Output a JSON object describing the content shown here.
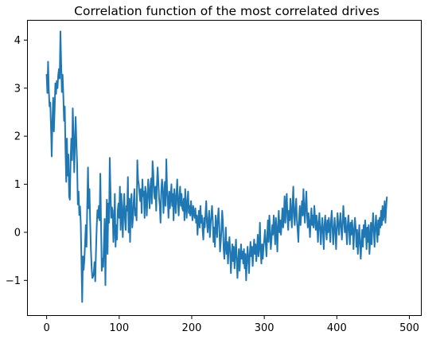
{
  "chart_data": {
    "type": "line",
    "title": "Correlation function of the most correlated drives",
    "xlabel": "",
    "ylabel": "",
    "xlim": [
      -27,
      517
    ],
    "ylim": [
      -1.74,
      4.42
    ],
    "xticks": [
      0,
      100,
      200,
      300,
      400,
      500
    ],
    "yticks": [
      -1,
      0,
      1,
      2,
      3,
      4
    ],
    "xtick_labels": [
      "0",
      "100",
      "200",
      "300",
      "400",
      "500"
    ],
    "ytick_labels": [
      "−1",
      "0",
      "1",
      "2",
      "3",
      "4"
    ],
    "grid": false,
    "series": [
      {
        "color": "#1f77b4",
        "x_start": 0,
        "x_step": 1,
        "values": [
          3.28,
          2.9,
          3.55,
          2.95,
          2.62,
          2.7,
          2.2,
          1.58,
          2.32,
          2.8,
          2.1,
          2.55,
          3.1,
          2.88,
          3.15,
          3.0,
          3.28,
          3.4,
          3.2,
          4.18,
          3.55,
          2.92,
          3.28,
          2.85,
          2.32,
          2.62,
          1.7,
          1.05,
          1.95,
          1.18,
          1.62,
          0.75,
          0.68,
          1.48,
          1.95,
          1.5,
          2.58,
          2.05,
          1.25,
          1.82,
          2.4,
          1.88,
          1.45,
          0.58,
          0.85,
          0.36,
          0.54,
          0.2,
          -0.6,
          -1.45,
          -0.5,
          -0.78,
          -0.58,
          -0.22,
          0.15,
          -0.3,
          0.58,
          1.35,
          0.5,
          0.9,
          0.22,
          -0.35,
          -0.72,
          -0.95,
          -0.92,
          -0.85,
          -0.62,
          -1.02,
          -0.4,
          0.1,
          0.46,
          0.3,
          0.55,
          0.25,
          1.22,
          0.18,
          -0.8,
          -0.55,
          -0.72,
          -0.2,
          0.28,
          -1.1,
          -0.05,
          0.68,
          -0.45,
          0.6,
          0.2,
          1.55,
          0.9,
          0.3,
          0.52,
          0.45,
          -0.2,
          0.1,
          0.8,
          -0.3,
          0.15,
          -0.15,
          0.45,
          0.6,
          0.3,
          0.95,
          0.05,
          0.8,
          0.35,
          -0.1,
          0.55,
          0.8,
          0.25,
          0.05,
          0.55,
          0.45,
          1.15,
          0.0,
          0.7,
          -0.2,
          0.6,
          0.8,
          0.1,
          0.3,
          0.65,
          0.9,
          0.35,
          0.5,
          0.25,
          1.5,
          1.1,
          1.0,
          0.8,
          0.65,
          0.9,
          0.4,
          1.1,
          0.75,
          0.85,
          0.3,
          0.95,
          0.8,
          0.35,
          0.7,
          1.1,
          0.8,
          0.5,
          0.95,
          1.12,
          0.6,
          1.48,
          1.25,
          0.82,
          0.7,
          0.95,
          0.45,
          1.0,
          1.35,
          1.05,
          0.72,
          0.55,
          0.2,
          0.85,
          1.1,
          0.95,
          0.4,
          0.7,
          1.05,
          0.55,
          1.52,
          0.9,
          0.65,
          0.3,
          0.85,
          0.5,
          0.75,
          1.0,
          0.55,
          0.8,
          0.25,
          0.9,
          0.7,
          0.4,
          0.8,
          1.1,
          0.6,
          0.35,
          0.75,
          0.95,
          0.55,
          0.8,
          0.5,
          0.45,
          0.7,
          0.25,
          0.9,
          0.6,
          0.3,
          0.65,
          0.85,
          0.4,
          0.55,
          0.35,
          0.65,
          0.45,
          0.25,
          0.55,
          0.4,
          0.3,
          0.5,
          0.2,
          0.35,
          -0.05,
          0.25,
          0.45,
          0.1,
          0.55,
          0.2,
          0.35,
          0.05,
          -0.15,
          0.3,
          0.1,
          0.4,
          0.65,
          0.2,
          0.0,
          0.25,
          0.45,
          -0.1,
          0.15,
          0.35,
          0.55,
          0.25,
          -0.2,
          0.1,
          -0.3,
          0.35,
          0.15,
          -0.1,
          0.3,
          0.5,
          0.15,
          -0.4,
          -0.2,
          0.05,
          0.45,
          0.2,
          -0.35,
          -0.55,
          -0.25,
          0.1,
          -0.45,
          -0.2,
          -0.65,
          -0.3,
          -0.1,
          -0.4,
          -0.85,
          -0.5,
          -0.25,
          -0.6,
          -0.3,
          -0.75,
          -0.45,
          -0.15,
          -0.55,
          -0.95,
          -0.6,
          -0.35,
          -0.8,
          -0.5,
          -0.25,
          -0.55,
          -0.4,
          -0.65,
          -0.35,
          -0.75,
          -0.45,
          -1.0,
          -0.6,
          -0.3,
          -0.55,
          -0.85,
          -0.45,
          -0.2,
          -0.5,
          -0.3,
          -0.7,
          -0.4,
          -0.15,
          -0.45,
          -0.25,
          -0.6,
          -0.35,
          -0.05,
          -0.5,
          -0.3,
          0.2,
          -0.4,
          -0.65,
          -0.25,
          -0.55,
          -0.3,
          -0.15,
          0.05,
          -0.25,
          -0.5,
          -0.1,
          0.25,
          -0.2,
          0.35,
          0.05,
          -0.35,
          -0.15,
          0.15,
          -0.05,
          0.35,
          0.1,
          -0.25,
          0.3,
          0.05,
          -0.4,
          0.15,
          0.45,
          0.0,
          0.25,
          -0.05,
          0.2,
          0.5,
          0.1,
          0.3,
          0.75,
          0.2,
          0.55,
          0.8,
          0.3,
          0.05,
          0.45,
          0.25,
          0.7,
          0.4,
          0.1,
          0.6,
          0.95,
          0.35,
          0.15,
          0.5,
          0.7,
          0.25,
          0.05,
          -0.2,
          0.3,
          0.55,
          0.15,
          0.4,
          0.65,
          0.35,
          0.9,
          0.45,
          0.2,
          0.6,
          0.85,
          0.35,
          0.1,
          0.4,
          0.2,
          -0.1,
          0.25,
          0.5,
          0.15,
          0.35,
          0.1,
          0.55,
          0.3,
          0.05,
          0.35,
          0.15,
          -0.2,
          0.2,
          0.4,
          0.05,
          -0.25,
          0.1,
          0.3,
          0.0,
          -0.35,
          0.15,
          0.35,
          0.05,
          -0.15,
          0.25,
          0.0,
          0.3,
          0.1,
          -0.2,
          0.25,
          0.45,
          0.1,
          -0.25,
          0.05,
          0.3,
          0.0,
          -0.35,
          0.1,
          0.4,
          0.15,
          -0.05,
          0.2,
          0.4,
          0.1,
          -0.15,
          0.2,
          0.55,
          0.25,
          0.0,
          0.3,
          0.05,
          -0.25,
          0.15,
          0.35,
          0.05,
          -0.25,
          0.2,
          -0.05,
          0.25,
          0.05,
          -0.35,
          0.05,
          0.3,
          0.1,
          -0.3,
          0.05,
          -0.45,
          -0.15,
          0.15,
          -0.25,
          -0.55,
          -0.2,
          0.05,
          -0.3,
          0.15,
          -0.1,
          0.25,
          0.05,
          -0.35,
          0.1,
          -0.2,
          0.15,
          -0.45,
          -0.15,
          0.2,
          -0.25,
          0.1,
          0.4,
          0.05,
          -0.3,
          0.1,
          0.35,
          0.05,
          -0.2,
          0.25,
          -0.05,
          0.3,
          0.1,
          0.45,
          0.15,
          0.55,
          0.25,
          0.4,
          0.65,
          0.2,
          0.5,
          0.73
        ]
      }
    ]
  }
}
